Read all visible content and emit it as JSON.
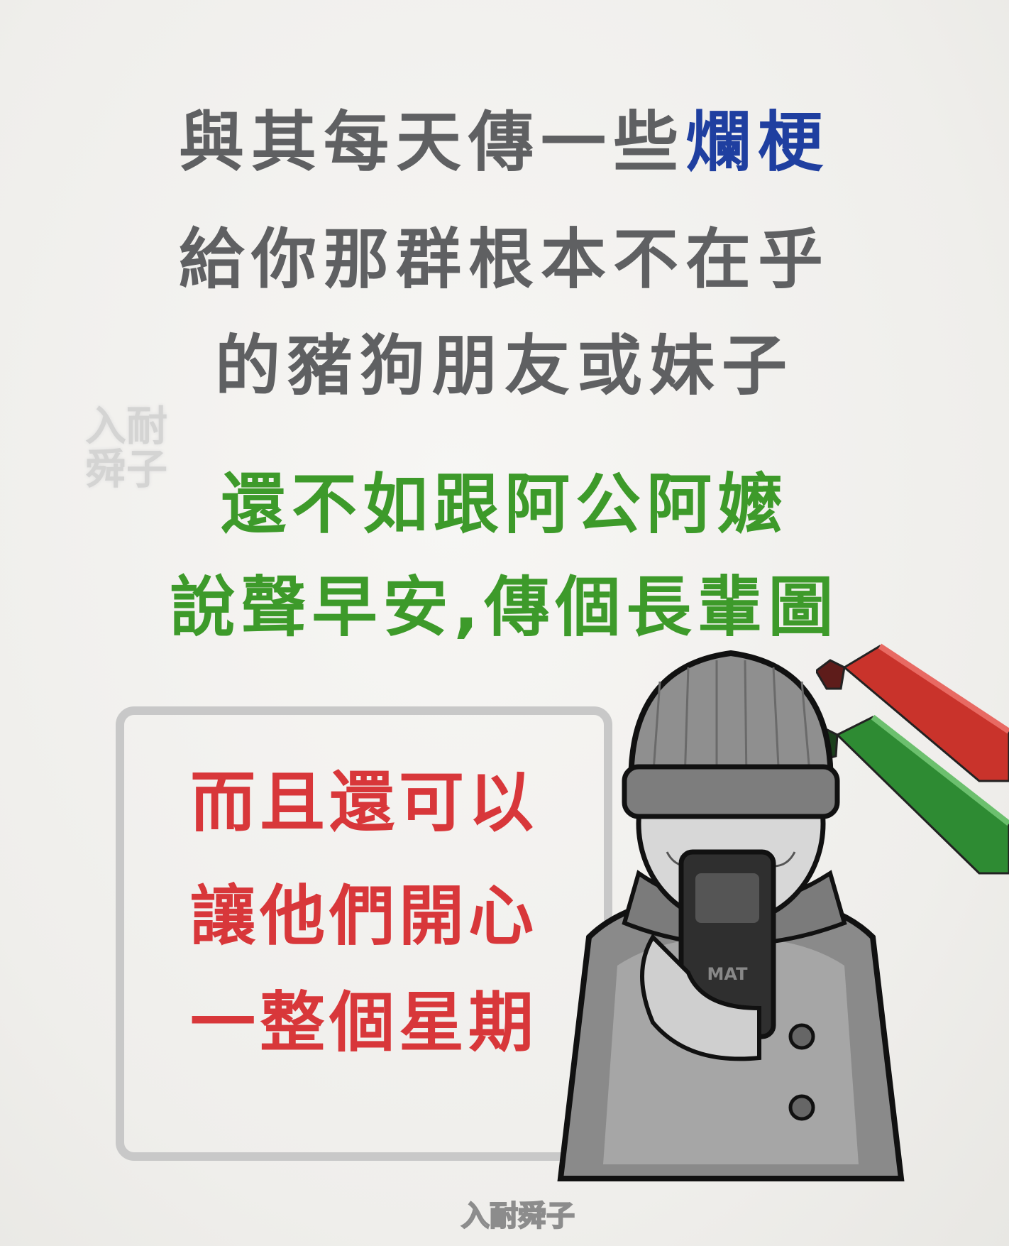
{
  "lines": {
    "l1_gray": "與其每天傳一些",
    "l1_blue": "爛梗",
    "l2": "給你那群根本不在乎",
    "l3": "的豬狗朋友或妹子",
    "l4": "還不如跟阿公阿嬤",
    "l5": "說聲早安,傳個長輩圖"
  },
  "box": {
    "r1": "而且還可以",
    "r2": "讓他們開心",
    "r3": "一整個星期"
  },
  "watermark": {
    "left_top": "入耐",
    "left_bottom": "舜子",
    "bottom": "入耐舜子"
  },
  "phone_label": "MAT",
  "colors": {
    "gray_text": "#5f6062",
    "blue_text": "#1f3fa0",
    "green_text": "#3d9a2a",
    "red_text": "#d8373a",
    "box_border": "#c8c8c8",
    "red_marker": "#c9332b",
    "green_marker": "#2e8b33"
  }
}
